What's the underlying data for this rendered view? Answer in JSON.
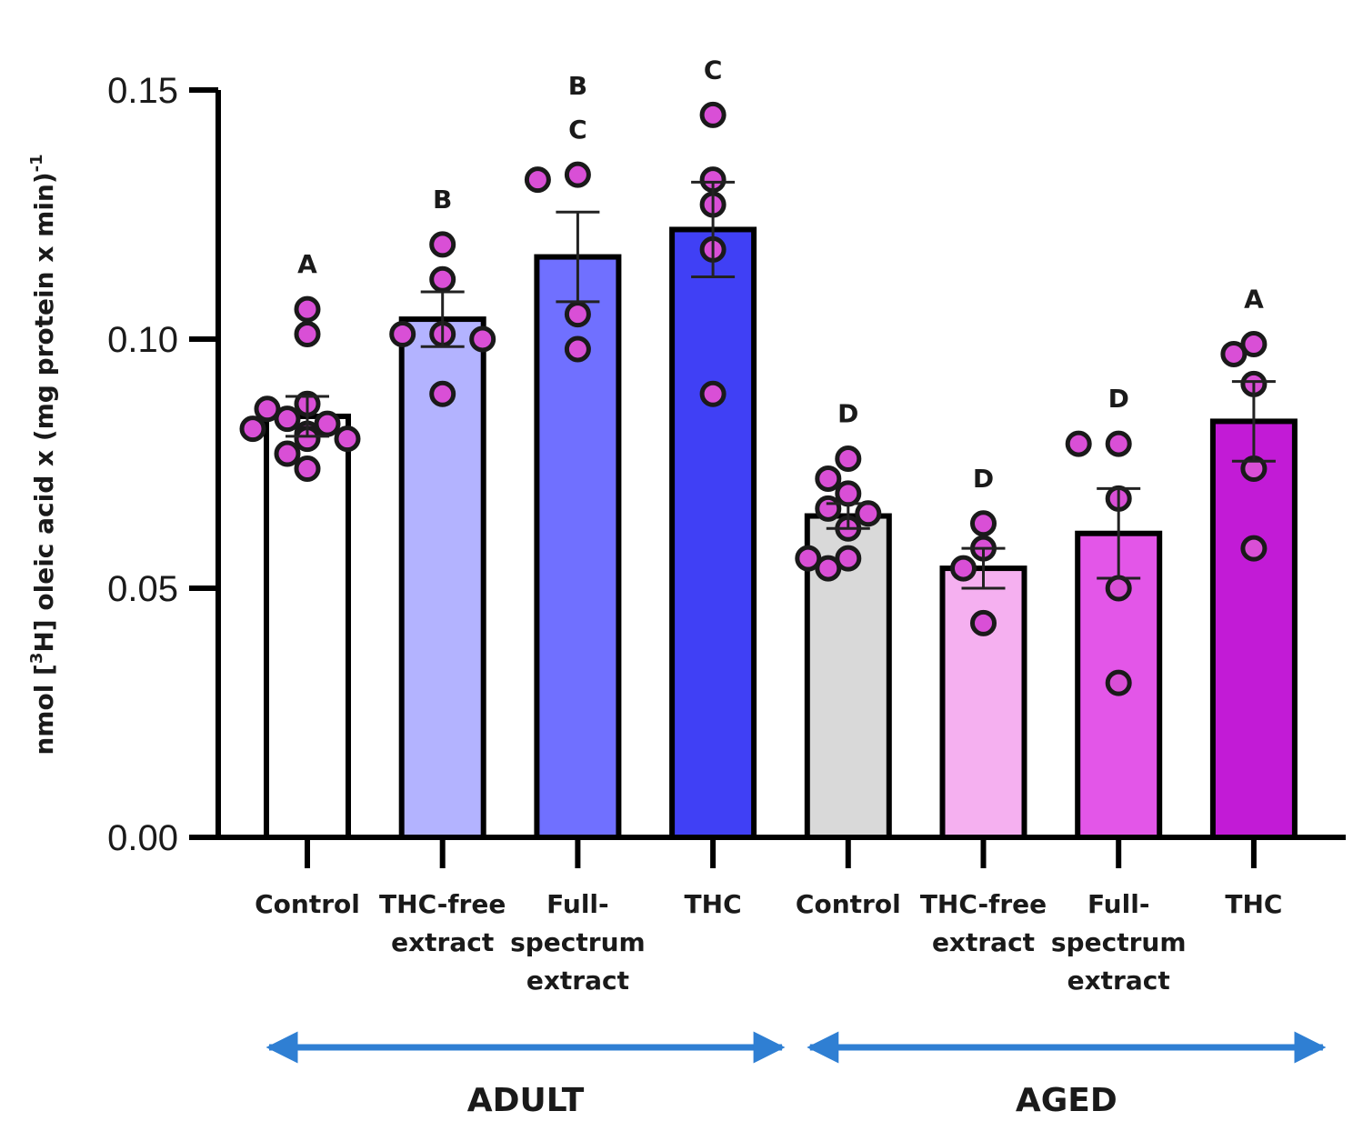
{
  "chart_data": {
    "type": "bar",
    "title": "",
    "ylabel_parts": [
      "nmol [",
      "3",
      "H] oleic acid x (mg protein x min)",
      "-1"
    ],
    "ylim": [
      0,
      0.15
    ],
    "yticks": [
      {
        "value": 0.0,
        "label": "0.00"
      },
      {
        "value": 0.05,
        "label": "0.05"
      },
      {
        "value": 0.1,
        "label": "0.10"
      },
      {
        "value": 0.15,
        "label": "0.15"
      }
    ],
    "grid": false,
    "point_color": "#d94fd6",
    "groups": [
      {
        "label": "ADULT",
        "from": 0,
        "to": 3
      },
      {
        "label": "AGED",
        "from": 4,
        "to": 7
      }
    ],
    "arrow_color": "#2f7fd3",
    "bars": [
      {
        "category": [
          "Control"
        ],
        "mean": 0.0845,
        "sem": 0.004,
        "color": "#ffffff",
        "letters": [
          "A"
        ],
        "points": [
          0.106,
          0.101,
          0.087,
          0.086,
          0.084,
          0.083,
          0.082,
          0.081,
          0.08,
          0.08,
          0.077,
          0.074
        ]
      },
      {
        "category": [
          "THC-free",
          "extract"
        ],
        "mean": 0.104,
        "sem": 0.0055,
        "color": "#b3b3ff",
        "letters": [
          "B"
        ],
        "points": [
          0.119,
          0.112,
          0.101,
          0.101,
          0.1,
          0.089
        ]
      },
      {
        "category": [
          "Full-",
          "spectrum",
          "extract"
        ],
        "mean": 0.1165,
        "sem": 0.009,
        "color": "#7070ff",
        "letters": [
          "B",
          "C"
        ],
        "points": [
          0.132,
          0.133,
          0.105,
          0.098
        ]
      },
      {
        "category": [
          "THC"
        ],
        "mean": 0.122,
        "sem": 0.0095,
        "color": "#4040f5",
        "letters": [
          "C"
        ],
        "points": [
          0.145,
          0.132,
          0.127,
          0.118,
          0.089
        ]
      },
      {
        "category": [
          "Control"
        ],
        "mean": 0.0645,
        "sem": 0.0025,
        "color": "#d9d9d9",
        "letters": [
          "D"
        ],
        "points": [
          0.076,
          0.072,
          0.069,
          0.066,
          0.065,
          0.062,
          0.056,
          0.056,
          0.054
        ]
      },
      {
        "category": [
          "THC-free",
          "extract"
        ],
        "mean": 0.054,
        "sem": 0.004,
        "color": "#f5b0f0",
        "letters": [
          "D"
        ],
        "points": [
          0.063,
          0.058,
          0.054,
          0.043
        ]
      },
      {
        "category": [
          "Full-",
          "spectrum",
          "extract"
        ],
        "mean": 0.061,
        "sem": 0.009,
        "color": "#e356e8",
        "letters": [
          "D"
        ],
        "points": [
          0.079,
          0.079,
          0.068,
          0.05,
          0.031
        ]
      },
      {
        "category": [
          "THC"
        ],
        "mean": 0.0835,
        "sem": 0.008,
        "color": "#c21bd6",
        "letters": [
          "A"
        ],
        "points": [
          0.099,
          0.097,
          0.091,
          0.074,
          0.058
        ]
      }
    ]
  }
}
